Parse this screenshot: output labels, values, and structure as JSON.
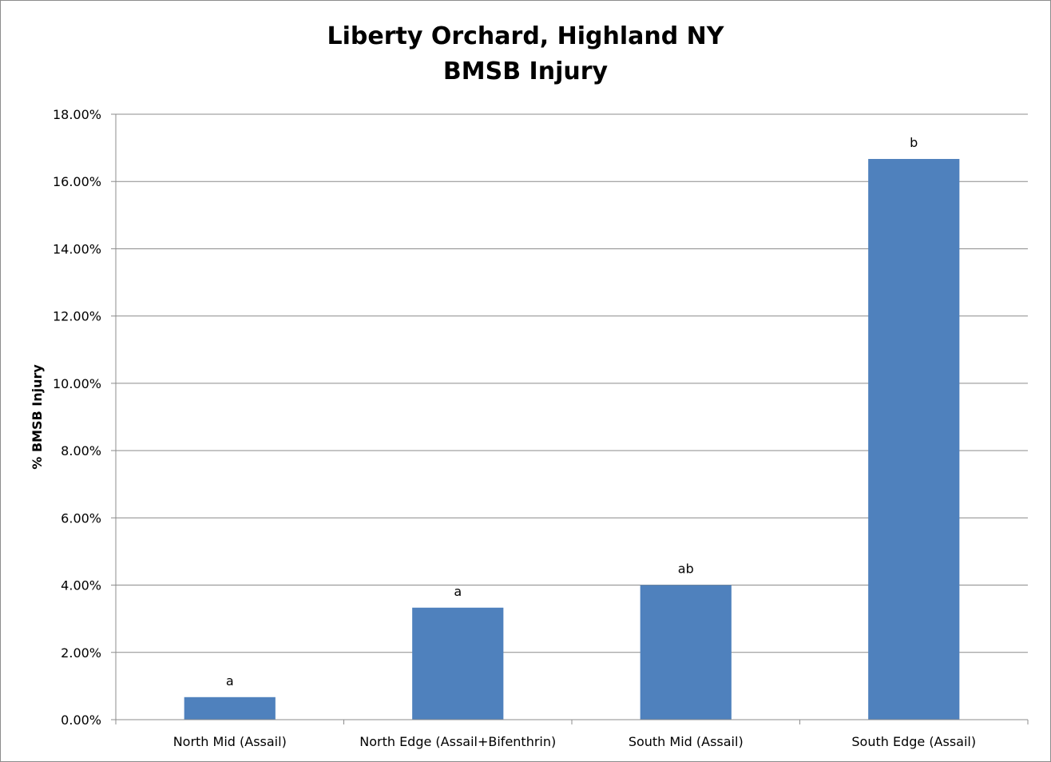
{
  "chart_data": {
    "type": "bar",
    "title": "Liberty Orchard, Highland NY",
    "subtitle": "BMSB Injury",
    "ylabel": "% BMSB Injury",
    "xlabel": "",
    "categories": [
      "North Mid (Assail)",
      "North Edge (Assail+Bifenthrin)",
      "South Mid (Assail)",
      "South Edge (Assail)"
    ],
    "values": [
      0.67,
      3.33,
      4.0,
      16.67
    ],
    "data_labels": [
      "a",
      "a",
      "ab",
      "b"
    ],
    "ylim": [
      0,
      18
    ],
    "yticks": [
      0,
      2,
      4,
      6,
      8,
      10,
      12,
      14,
      16,
      18
    ],
    "ytick_labels": [
      "0.00%",
      "2.00%",
      "4.00%",
      "6.00%",
      "8.00%",
      "10.00%",
      "12.00%",
      "14.00%",
      "16.00%",
      "18.00%"
    ],
    "grid": true,
    "legend": "none",
    "bar_color": "#4f81bd",
    "grid_color": "#8c8c8c"
  }
}
